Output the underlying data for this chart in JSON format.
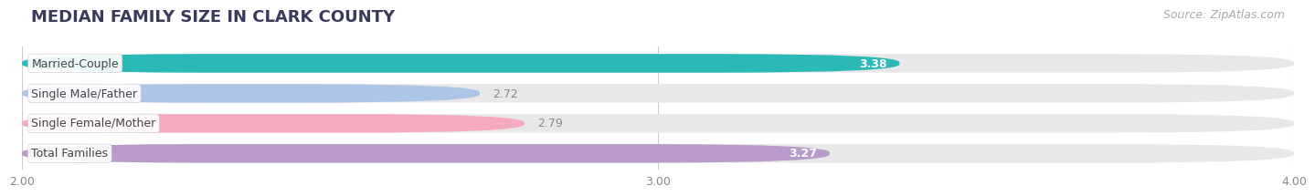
{
  "title": "MEDIAN FAMILY SIZE IN CLARK COUNTY",
  "source": "Source: ZipAtlas.com",
  "categories": [
    "Married-Couple",
    "Single Male/Father",
    "Single Female/Mother",
    "Total Families"
  ],
  "values": [
    3.38,
    2.72,
    2.79,
    3.27
  ],
  "bar_colors": [
    "#29b9b7",
    "#adc6e8",
    "#f5aabf",
    "#b99bcb"
  ],
  "value_colors": [
    "#ffffff",
    "#888888",
    "#888888",
    "#ffffff"
  ],
  "xlim": [
    2.0,
    4.0
  ],
  "xmin": 2.0,
  "xmax": 4.0,
  "xticks": [
    2.0,
    3.0,
    4.0
  ],
  "xtick_labels": [
    "2.00",
    "3.00",
    "4.00"
  ],
  "bar_height": 0.62,
  "background_color": "#ffffff",
  "bar_background_color": "#e8e8e8",
  "title_fontsize": 13,
  "source_fontsize": 9,
  "label_fontsize": 9,
  "value_fontsize": 9,
  "tick_fontsize": 9
}
